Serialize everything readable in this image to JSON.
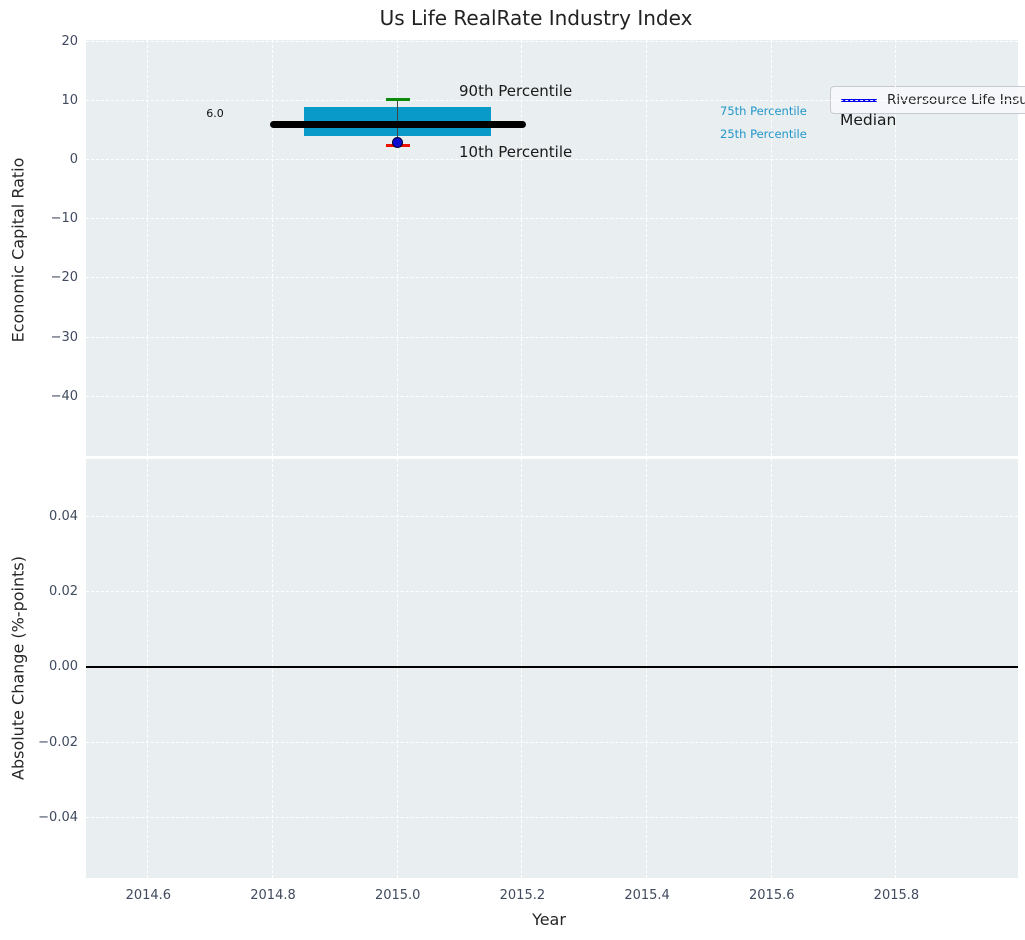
{
  "figure": {
    "title": "Us Life RealRate Industry Index",
    "background": "#ffffff",
    "axes_background": "#e9eef0",
    "grid_color": "#ffffff"
  },
  "legend": {
    "label": "Riversource Life Insurance Co",
    "line_color": "#0000ee"
  },
  "annotations": {
    "p90_label": "90th Percentile",
    "p10_label": "10th Percentile",
    "p75_label": "75th Percentile",
    "p25_label": "25th Percentile",
    "median_label": "Median",
    "median_value_label": "6.0"
  },
  "colors": {
    "box_fill": "#0a9ac9",
    "median_line": "#000000",
    "whisker_line": "#444444",
    "p90_cap": "#0b8a0b",
    "p10_cap": "#ee1100",
    "company_dot": "#0b0bd0",
    "percentile_text": "#2196c9",
    "tick_text": "#404b5e",
    "zero_line": "#000000"
  },
  "chart_data": [
    {
      "type": "box",
      "title": "Us Life RealRate Industry Index",
      "xlabel": "Year",
      "ylabel": "Economic Capital Ratio",
      "xlim": [
        2014.5,
        2015.995
      ],
      "ylim": [
        -50.0,
        20.3
      ],
      "grid": true,
      "legend_position": "upper right",
      "legend_entries": [
        "Riversource Life Insurance Co"
      ],
      "xticks": [
        {
          "v": 2014.6,
          "label": "2014.6"
        },
        {
          "v": 2014.8,
          "label": "2014.8"
        },
        {
          "v": 2015.0,
          "label": "2015.0"
        },
        {
          "v": 2015.2,
          "label": "2015.2"
        },
        {
          "v": 2015.4,
          "label": "2015.4"
        },
        {
          "v": 2015.6,
          "label": "2015.6"
        },
        {
          "v": 2015.8,
          "label": "2015.8"
        }
      ],
      "yticks": [
        {
          "v": 20,
          "label": "20"
        },
        {
          "v": 10,
          "label": "10"
        },
        {
          "v": 0,
          "label": "0"
        },
        {
          "v": -10,
          "label": "−10"
        },
        {
          "v": -20,
          "label": "−20"
        },
        {
          "v": -30,
          "label": "−30"
        },
        {
          "v": -40,
          "label": "−40"
        }
      ],
      "box": {
        "x": 2015.0,
        "median": 6.0,
        "p90": 10.0,
        "p75": 9.0,
        "p25": 4.0,
        "p10": 2.5,
        "company_value": 3.0
      }
    },
    {
      "type": "line",
      "xlabel": "Year",
      "ylabel": "Absolute Change (%-points)",
      "xlim": [
        2014.5,
        2015.995
      ],
      "ylim": [
        -0.056,
        0.0554
      ],
      "grid": true,
      "zero_line": 0.0,
      "xticks": [
        {
          "v": 2014.6,
          "label": "2014.6"
        },
        {
          "v": 2014.8,
          "label": "2014.8"
        },
        {
          "v": 2015.0,
          "label": "2015.0"
        },
        {
          "v": 2015.2,
          "label": "2015.2"
        },
        {
          "v": 2015.4,
          "label": "2015.4"
        },
        {
          "v": 2015.6,
          "label": "2015.6"
        },
        {
          "v": 2015.8,
          "label": "2015.8"
        }
      ],
      "yticks": [
        {
          "v": 0.04,
          "label": "0.04"
        },
        {
          "v": 0.02,
          "label": "0.02"
        },
        {
          "v": 0.0,
          "label": "0.00"
        },
        {
          "v": -0.02,
          "label": "−0.02"
        },
        {
          "v": -0.04,
          "label": "−0.04"
        }
      ],
      "series": []
    }
  ]
}
